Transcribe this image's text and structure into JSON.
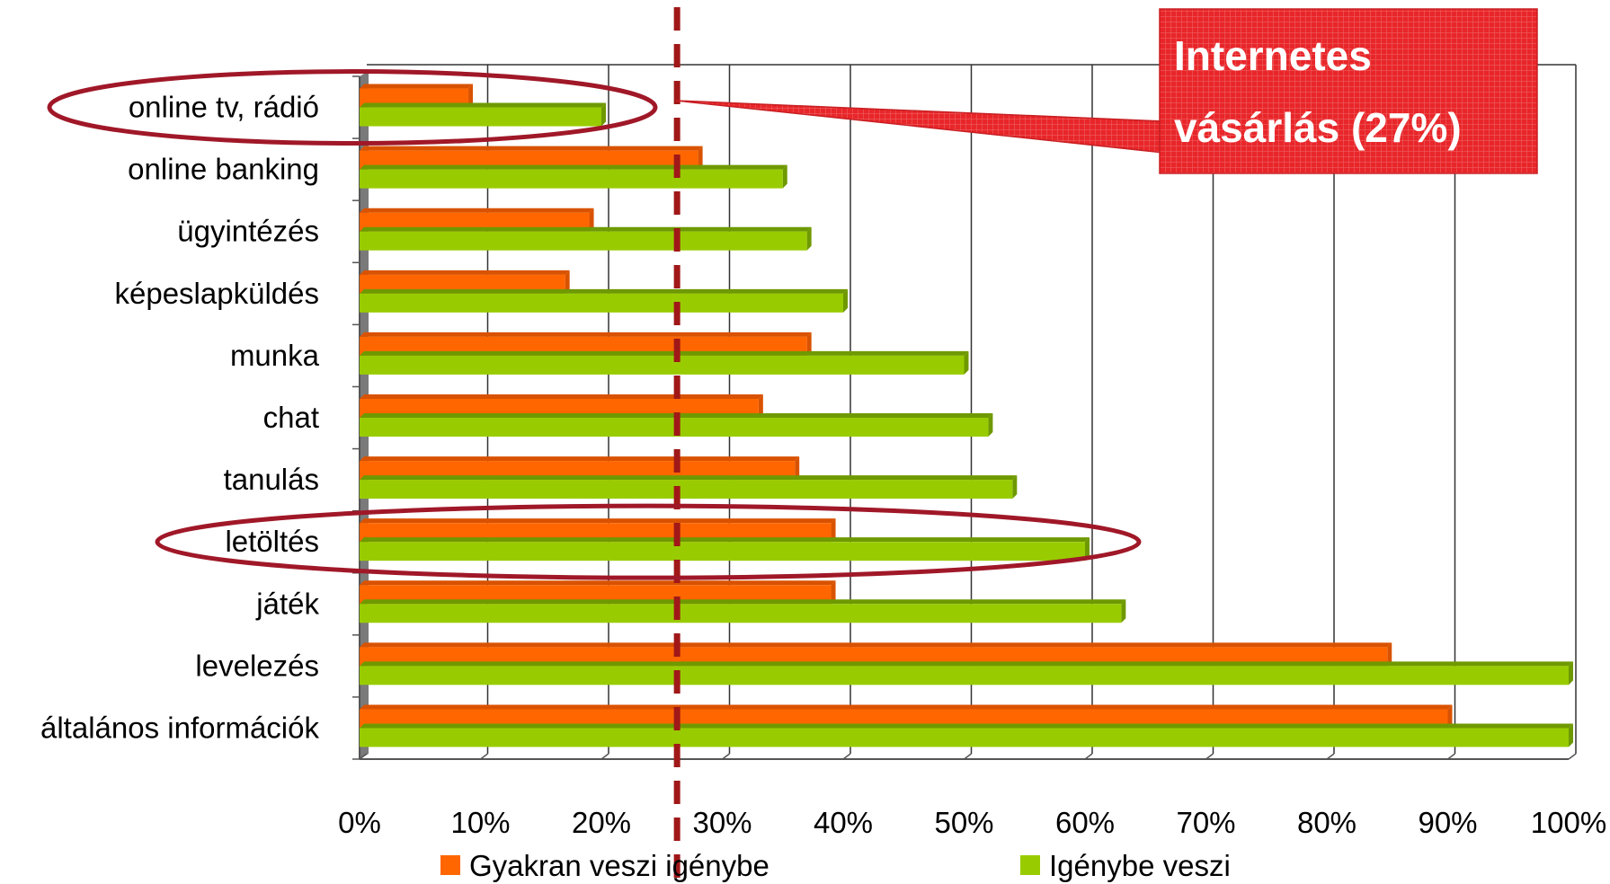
{
  "chart_data": {
    "type": "bar",
    "orientation": "horizontal",
    "categories": [
      "általános információk",
      "levelezés",
      "játék",
      "letöltés",
      "tanulás",
      "chat",
      "munka",
      "képeslapküldés",
      "ügyintézés",
      "online banking",
      "online tv, rádió"
    ],
    "series": [
      {
        "name": "Gyakran veszi igénybe",
        "color": "#ff6600",
        "values": [
          90,
          85,
          39,
          39,
          36,
          33,
          37,
          17,
          19,
          28,
          9
        ]
      },
      {
        "name": "Igénybe veszi",
        "color": "#99cc00",
        "values": [
          100,
          100,
          63,
          60,
          54,
          52,
          50,
          40,
          37,
          35,
          20
        ]
      }
    ],
    "x_ticks": [
      "0%",
      "10%",
      "20%",
      "30%",
      "40%",
      "50%",
      "60%",
      "70%",
      "80%",
      "90%",
      "100%"
    ],
    "xlim": [
      0,
      100
    ],
    "grid": true,
    "legend_position": "bottom",
    "reference_line": {
      "value": 27,
      "color": "#a01818",
      "style": "dashed"
    },
    "callout": {
      "line1": "Internetes",
      "line2": "vásárlás (27%)",
      "color": "#e8262a"
    },
    "highlighted_categories": [
      "online tv, rádió",
      "letöltés"
    ]
  }
}
